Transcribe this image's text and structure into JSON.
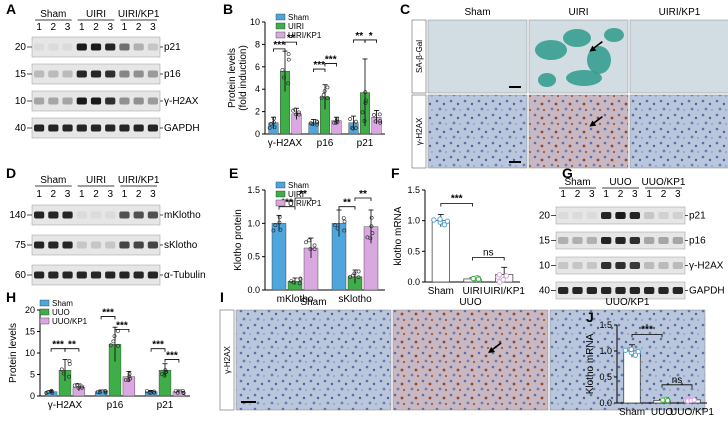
{
  "panels": {
    "A": {
      "label": "A",
      "groups": [
        "Sham",
        "UIRI",
        "UIRI/KP1"
      ],
      "lanes": [
        "1",
        "2",
        "3",
        "1",
        "2",
        "3",
        "1",
        "2",
        "3"
      ],
      "rows": [
        {
          "mw": "20",
          "name": "p21",
          "band_intensity": [
            0.05,
            0.05,
            0.05,
            0.95,
            0.95,
            0.9,
            0.55,
            0.25,
            0.15
          ]
        },
        {
          "mw": "15",
          "name": "p16",
          "band_intensity": [
            0.2,
            0.2,
            0.2,
            0.9,
            0.9,
            0.85,
            0.45,
            0.4,
            0.35
          ]
        },
        {
          "mw": "10",
          "name": "γ-H2AX",
          "band_intensity": [
            0.3,
            0.3,
            0.3,
            0.95,
            0.95,
            0.85,
            0.4,
            0.4,
            0.35
          ]
        },
        {
          "mw": "40",
          "name": "GAPDH",
          "band_intensity": [
            0.9,
            0.9,
            0.9,
            0.9,
            0.9,
            0.9,
            0.9,
            0.9,
            0.9
          ]
        }
      ]
    },
    "B": {
      "label": "B",
      "legend": [
        "Sham",
        "UIRI",
        "UIRI/KP1"
      ],
      "ylabel": "Protein levels\n(fold induction)",
      "sig": [
        "***",
        "**",
        "***",
        "***",
        "**",
        "*"
      ]
    },
    "C": {
      "label": "C",
      "columns": [
        "Sham",
        "UIRI",
        "UIRI/KP1"
      ],
      "rows": [
        "SA-β-Gal",
        "γ-H2AX"
      ]
    },
    "D": {
      "label": "D",
      "groups": [
        "Sham",
        "UIRI",
        "UIRI/KP1"
      ],
      "lanes": [
        "1",
        "2",
        "3",
        "1",
        "2",
        "3",
        "1",
        "2",
        "3"
      ],
      "rows": [
        {
          "mw": "140",
          "name": "mKlotho",
          "band_intensity": [
            0.9,
            0.9,
            0.9,
            0.05,
            0.05,
            0.05,
            0.7,
            0.7,
            0.7
          ]
        },
        {
          "mw": "75",
          "name": "sKlotho",
          "band_intensity": [
            0.9,
            0.9,
            0.9,
            0.15,
            0.15,
            0.15,
            0.75,
            0.75,
            0.75
          ]
        },
        {
          "mw": "60",
          "name": "α-Tubulin",
          "band_intensity": [
            0.9,
            0.9,
            0.9,
            0.9,
            0.9,
            0.9,
            0.9,
            0.9,
            0.9
          ]
        }
      ]
    },
    "E": {
      "label": "E",
      "legend": [
        "Sham",
        "UIRI",
        "UIRI/KP1"
      ],
      "ylabel": "Klotho protein",
      "sig": [
        "***",
        "**",
        "**",
        "**"
      ]
    },
    "F": {
      "label": "F",
      "ylabel": "klotho mRNA",
      "sig": [
        "***",
        "ns"
      ]
    },
    "G": {
      "label": "G",
      "groups": [
        "Sham",
        "UUO",
        "UUO/KP1"
      ],
      "lanes": [
        "1",
        "2",
        "3",
        "1",
        "2",
        "3",
        "1",
        "2",
        "3"
      ],
      "rows": [
        {
          "mw": "20",
          "name": "p21",
          "band_intensity": [
            0.05,
            0.05,
            0.05,
            0.9,
            0.95,
            0.9,
            0.15,
            0.1,
            0.1
          ]
        },
        {
          "mw": "15",
          "name": "p16",
          "band_intensity": [
            0.25,
            0.25,
            0.25,
            0.9,
            0.9,
            0.85,
            0.3,
            0.3,
            0.3
          ]
        },
        {
          "mw": "10",
          "name": "γ-H2AX",
          "band_intensity": [
            0.15,
            0.15,
            0.15,
            0.85,
            0.85,
            0.8,
            0.2,
            0.2,
            0.2
          ]
        },
        {
          "mw": "40",
          "name": "GAPDH",
          "band_intensity": [
            0.9,
            0.9,
            0.9,
            0.9,
            0.9,
            0.9,
            0.9,
            0.9,
            0.9
          ]
        }
      ]
    },
    "H": {
      "label": "H",
      "legend": [
        "Sham",
        "UUO",
        "UUO/KP1"
      ],
      "ylabel": "Protein levels",
      "sig": [
        "***",
        "**",
        "***",
        "***",
        "***",
        "***"
      ]
    },
    "I": {
      "label": "I",
      "columns": [
        "Sham",
        "UUO",
        "UUO/KP1"
      ],
      "row": "γ-H2AX"
    },
    "J": {
      "label": "J",
      "ylabel": "Klotho mRNA",
      "sig": [
        "***",
        "ns"
      ]
    }
  },
  "colors": {
    "sham": "#4ea6dc",
    "injury": "#3fae49",
    "kp1": "#d9a8e0"
  },
  "chart_data": [
    {
      "panel": "B",
      "type": "bar",
      "categories": [
        "γ-H2AX",
        "p16",
        "p21"
      ],
      "ylim": [
        0,
        10
      ],
      "yticks": [
        "0",
        "2",
        "4",
        "6",
        "8",
        "10"
      ],
      "series": [
        {
          "name": "Sham",
          "values": [
            1.0,
            1.0,
            1.0
          ]
        },
        {
          "name": "UIRI",
          "values": [
            5.6,
            3.3,
            3.7
          ]
        },
        {
          "name": "UIRI/KP1",
          "values": [
            1.8,
            1.2,
            1.5
          ]
        }
      ],
      "errors": [
        [
          0.5,
          0.3,
          0.6
        ],
        [
          1.8,
          1.1,
          3.0
        ],
        [
          0.5,
          0.3,
          0.6
        ]
      ]
    },
    {
      "panel": "E",
      "type": "bar",
      "categories": [
        "mKlotho",
        "sKlotho"
      ],
      "ylim": [
        0,
        1.5
      ],
      "yticks": [
        "0.0",
        "0.5",
        "1.0",
        "1.5"
      ],
      "series": [
        {
          "name": "Sham",
          "values": [
            1.0,
            1.0
          ]
        },
        {
          "name": "UIRI",
          "values": [
            0.13,
            0.2
          ]
        },
        {
          "name": "UIRI/KP1",
          "values": [
            0.63,
            0.95
          ]
        }
      ],
      "errors": [
        [
          0.12,
          0.2
        ],
        [
          0.05,
          0.1
        ],
        [
          0.15,
          0.25
        ]
      ]
    },
    {
      "panel": "F",
      "type": "bar",
      "categories": [
        "Sham",
        "UIRI",
        "UIRI/KP1"
      ],
      "ylim": [
        0,
        1.5
      ],
      "yticks": [
        "0.0",
        "0.5",
        "1.0",
        "1.5"
      ],
      "values": [
        1.0,
        0.05,
        0.12
      ],
      "errors": [
        0.1,
        0.02,
        0.12
      ]
    },
    {
      "panel": "H",
      "type": "bar",
      "categories": [
        "γ-H2AX",
        "p16",
        "p21"
      ],
      "ylim": [
        0,
        20
      ],
      "yticks": [
        "0",
        "5",
        "10",
        "15",
        "20"
      ],
      "series": [
        {
          "name": "Sham",
          "values": [
            1.0,
            1.0,
            1.0
          ]
        },
        {
          "name": "UUO",
          "values": [
            6.0,
            12.0,
            6.0
          ]
        },
        {
          "name": "UUO/KP1",
          "values": [
            2.0,
            4.5,
            1.0
          ]
        }
      ],
      "errors": [
        [
          0.3,
          0.4,
          0.3
        ],
        [
          2.5,
          4.0,
          1.5
        ],
        [
          0.8,
          1.2,
          0.4
        ]
      ]
    },
    {
      "panel": "J",
      "type": "bar",
      "categories": [
        "Sham",
        "UUO",
        "UUO/KP1"
      ],
      "ylim": [
        0,
        1.5
      ],
      "yticks": [
        "0.0",
        "0.5",
        "1.0",
        "1.5"
      ],
      "values": [
        1.0,
        0.05,
        0.06
      ],
      "errors": [
        0.12,
        0.02,
        0.02
      ]
    }
  ]
}
